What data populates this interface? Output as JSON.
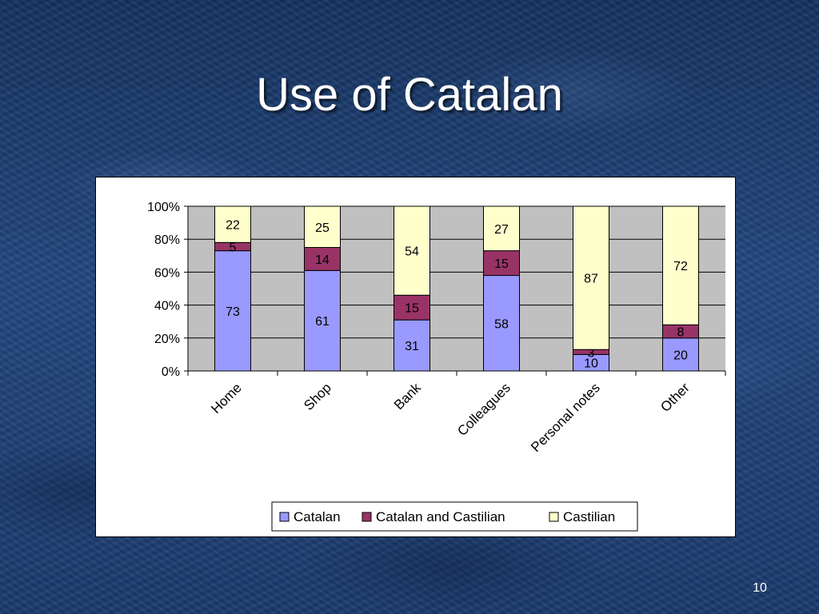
{
  "slide": {
    "title": "Use of Catalan",
    "page_number": "10"
  },
  "colors": {
    "catalan": "#9999ff",
    "catalan_and_castilian": "#993366",
    "castilian": "#ffffcc",
    "plot_background": "#c0c0c0"
  },
  "chart_data": {
    "type": "bar",
    "stacked": "percent",
    "categories": [
      "Home",
      "Shop",
      "Bank",
      "Colleagues",
      "Personal notes",
      "Other"
    ],
    "series": [
      {
        "name": "Catalan",
        "values": [
          73,
          61,
          31,
          58,
          10,
          20
        ]
      },
      {
        "name": "Catalan and Castilian",
        "values": [
          5,
          14,
          15,
          15,
          3,
          8
        ]
      },
      {
        "name": "Castilian",
        "values": [
          22,
          25,
          54,
          27,
          87,
          72
        ]
      }
    ],
    "y_ticks": [
      "0%",
      "20%",
      "40%",
      "60%",
      "80%",
      "100%"
    ],
    "ylim": [
      0,
      100
    ],
    "grid": true,
    "legend_position": "bottom",
    "x_label_rotation": "diagonal"
  }
}
